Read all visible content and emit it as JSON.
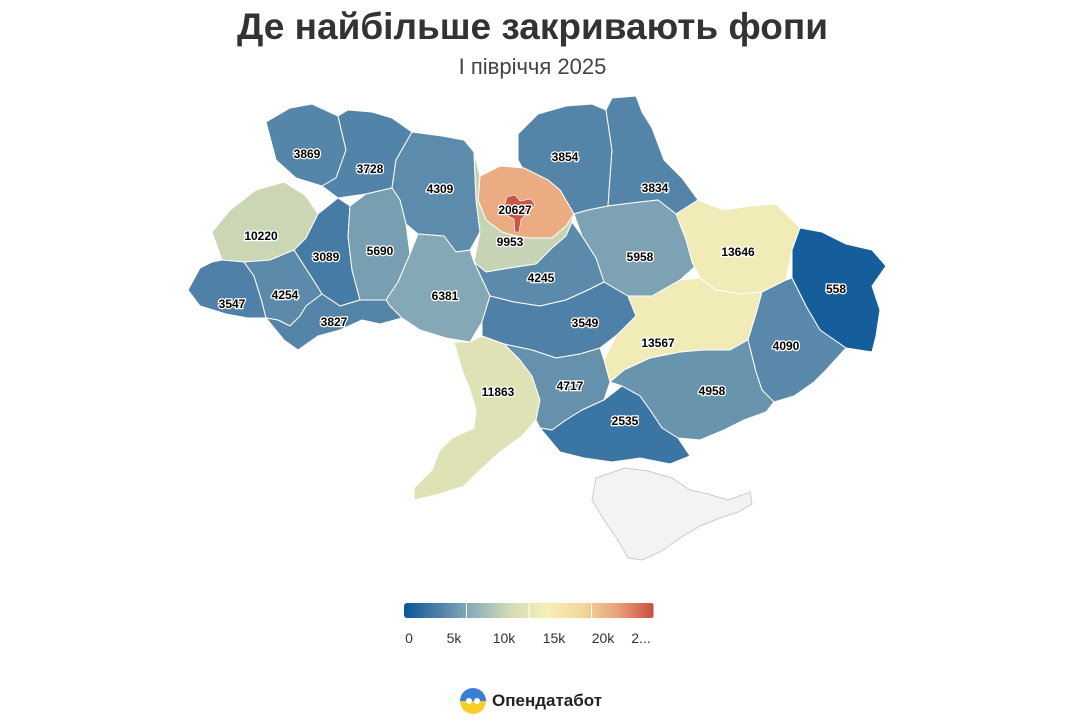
{
  "title": "Де найбільше закривають фопи",
  "subtitle": "І півріччя 2025",
  "brand": {
    "name": "Опендатабот"
  },
  "colors": {
    "scale": [
      "#0b5799",
      "#4f81a8",
      "#93b2b8",
      "#d4dcb4",
      "#f7efb8",
      "#f4d79a",
      "#e9a07b",
      "#c94b40"
    ],
    "crimea": "#f2f3f5"
  },
  "legend": {
    "ticks": [
      "0",
      "5k",
      "10k",
      "15k",
      "20k",
      "2..."
    ]
  },
  "chart_data": {
    "type": "choropleth",
    "values": [
      {
        "value": 3869
      },
      {
        "value": 3728
      },
      {
        "value": 4309
      },
      {
        "value": 3854
      },
      {
        "value": 3834
      },
      {
        "value": 10220
      },
      {
        "value": 3089
      },
      {
        "value": 5690
      },
      {
        "value": 20627
      },
      {
        "value": 9953
      },
      {
        "value": 5958
      },
      {
        "value": 13646
      },
      {
        "value": 558
      },
      {
        "value": 4245
      },
      {
        "value": 3547
      },
      {
        "value": 4254
      },
      {
        "value": 6381
      },
      {
        "value": 3827
      },
      {
        "value": 3549
      },
      {
        "value": 13567
      },
      {
        "value": 4090
      },
      {
        "value": 11863
      },
      {
        "value": 4717
      },
      {
        "value": 4958
      },
      {
        "value": 2535
      }
    ],
    "color_scale": {
      "min": 0,
      "max": 25000
    },
    "legend_ticks": [
      0,
      5000,
      10000,
      15000,
      20000
    ]
  }
}
